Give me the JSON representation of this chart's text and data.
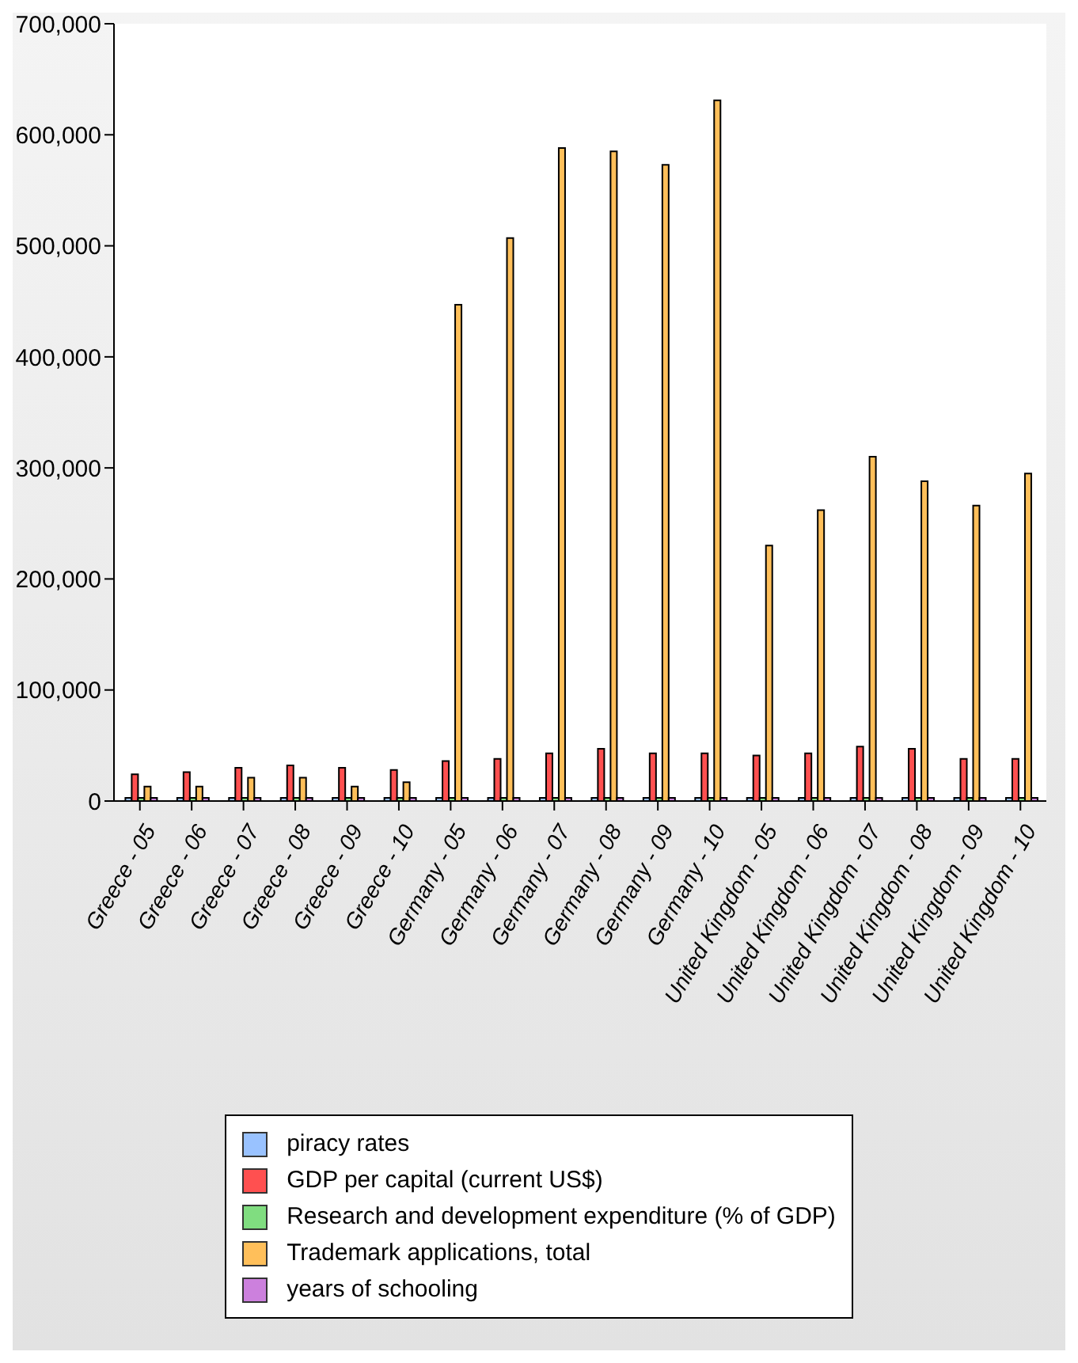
{
  "chart_data": {
    "type": "bar",
    "categories": [
      "Greece - 05",
      "Greece - 06",
      "Greece - 07",
      "Greece - 08",
      "Greece - 09",
      "Greece - 10",
      "Germany - 05",
      "Germany - 06",
      "Germany - 07",
      "Germany - 08",
      "Germany - 09",
      "Germany - 10",
      "United Kingdom - 05",
      "United Kingdom - 06",
      "United Kingdom - 07",
      "United Kingdom - 08",
      "United Kingdom - 09",
      "United Kingdom - 10"
    ],
    "series": [
      {
        "name": "piracy rates",
        "color": "#99c2ff",
        "values": [
          0,
          0,
          0,
          0,
          0,
          0,
          0,
          0,
          0,
          0,
          0,
          0,
          0,
          0,
          0,
          0,
          0,
          0
        ]
      },
      {
        "name": "GDP per capital (current US$)",
        "color": "#ff5050",
        "values": [
          24000,
          26000,
          30000,
          32000,
          30000,
          28000,
          36000,
          38000,
          43000,
          47000,
          43000,
          43000,
          41000,
          43000,
          49000,
          47000,
          38000,
          38000
        ]
      },
      {
        "name": "Research and development expenditure (% of GDP)",
        "color": "#80dd80",
        "values": [
          0,
          0,
          0,
          0,
          0,
          0,
          0,
          0,
          0,
          0,
          0,
          0,
          0,
          0,
          0,
          0,
          0,
          0
        ]
      },
      {
        "name": "Trademark applications, total",
        "color": "#ffbf5a",
        "values": [
          13000,
          13000,
          21000,
          21000,
          13000,
          17000,
          447000,
          507000,
          588000,
          585000,
          573000,
          631000,
          230000,
          262000,
          310000,
          288000,
          266000,
          295000
        ]
      },
      {
        "name": "years of schooling",
        "color": "#cc80dd",
        "values": [
          0,
          0,
          0,
          0,
          0,
          0,
          0,
          0,
          0,
          0,
          0,
          0,
          0,
          0,
          0,
          0,
          0,
          0
        ]
      }
    ],
    "ylim": [
      0,
      700000
    ],
    "yticks": [
      {
        "value": 0,
        "label": "0"
      },
      {
        "value": 100000,
        "label": "100,000"
      },
      {
        "value": 200000,
        "label": "200,000"
      },
      {
        "value": 300000,
        "label": "300,000"
      },
      {
        "value": 400000,
        "label": "400,000"
      },
      {
        "value": 500000,
        "label": "500,000"
      },
      {
        "value": 600000,
        "label": "600,000"
      },
      {
        "value": 700000,
        "label": "700,000"
      }
    ],
    "grid": false,
    "legend": "bottom"
  }
}
